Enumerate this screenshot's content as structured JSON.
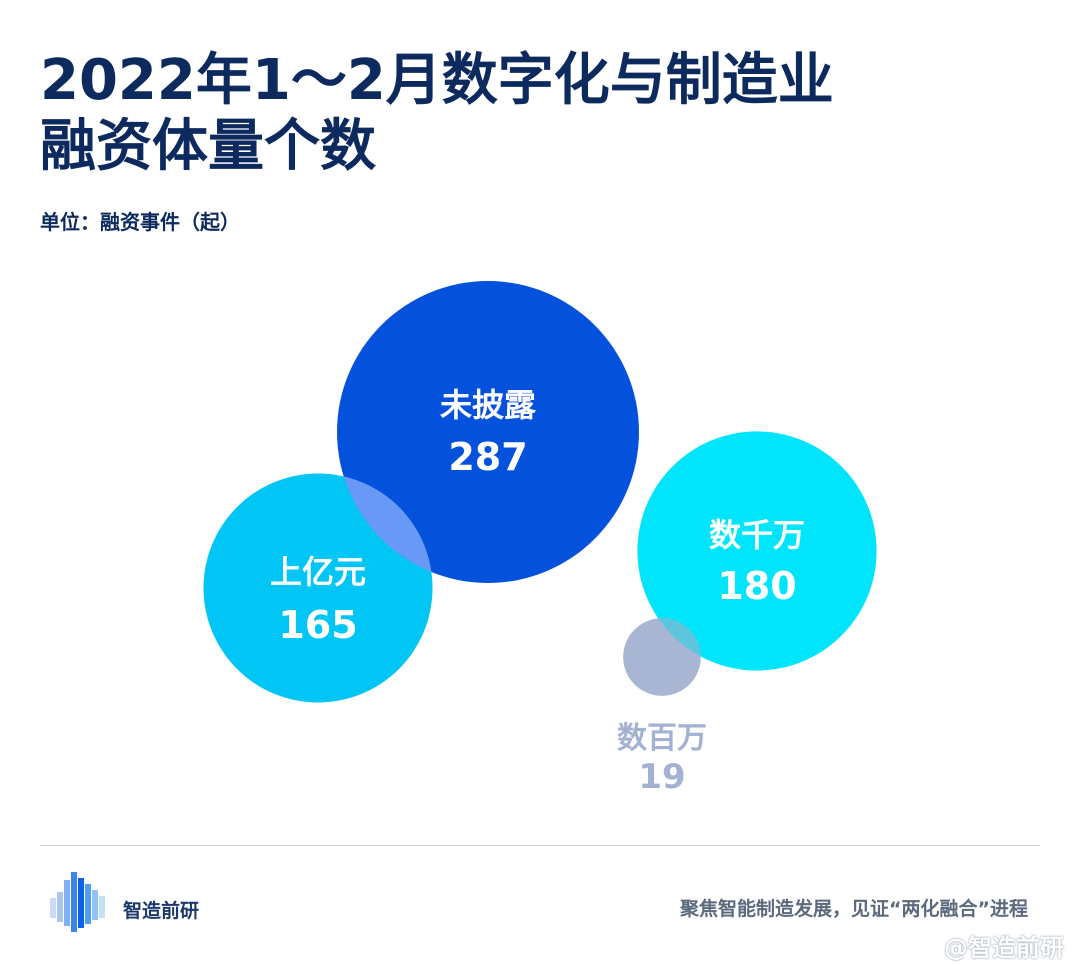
{
  "title_lines": [
    "2022年1～2月数字化与制造业",
    "融资体量个数"
  ],
  "unit_label": "单位：融资事件（起）",
  "chart_data": {
    "type": "bubble",
    "title": "2022年1～2月数字化与制造业融资体量个数",
    "unit": "单位：融资事件（起）",
    "items": [
      {
        "label": "未披露",
        "value": 287,
        "color": "#0451dc",
        "label_color": "#ffffff"
      },
      {
        "label": "上亿元",
        "value": 165,
        "color": "#00c5f5",
        "label_color": "#ffffff"
      },
      {
        "label": "数千万",
        "value": 180,
        "color": "#00e5fb",
        "label_color": "#ffffff"
      },
      {
        "label": "数百万",
        "value": 19,
        "color": "#a3b2d2",
        "label_color": "#a3b2d2"
      }
    ],
    "overlap_color": "#6899f6"
  },
  "footer": {
    "brand": "智造前研",
    "slogan": "聚焦智能制造发展，见证“两化融合”进程",
    "watermark": "@智造前研"
  }
}
